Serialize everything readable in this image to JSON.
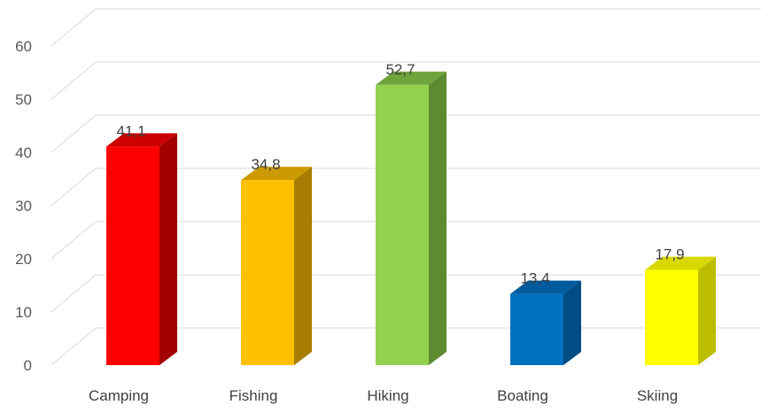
{
  "chart_data": {
    "type": "bar",
    "style": "3d-column",
    "title": "",
    "xlabel": "",
    "ylabel": "",
    "categories": [
      "Camping",
      "Fishing",
      "Hiking",
      "Boating",
      "Skiing"
    ],
    "values": [
      41.1,
      34.8,
      52.7,
      13.4,
      17.9
    ],
    "data_labels": [
      "41,1",
      "34,8",
      "52,7",
      "13,4",
      "17,9"
    ],
    "colors": [
      "#FF0000",
      "#FFC000",
      "#92D050",
      "#0070C0",
      "#FFFF00"
    ],
    "side_colors": [
      "#A50000",
      "#A67D00",
      "#5E8A31",
      "#004C84",
      "#BDBD00"
    ],
    "top_colors": [
      "#CC0000",
      "#CC9A00",
      "#6FA33C",
      "#005A9E",
      "#D9D900"
    ],
    "ylim": [
      0,
      60
    ],
    "yticks": [
      0,
      10,
      20,
      30,
      40,
      50,
      60
    ],
    "grid": true,
    "legend": "none"
  }
}
